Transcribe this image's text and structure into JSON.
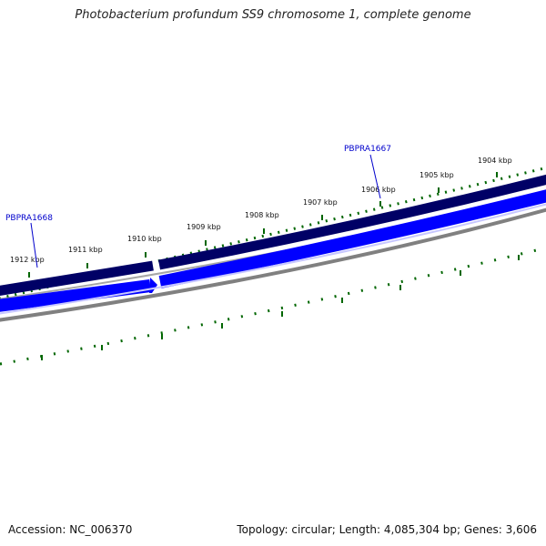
{
  "title": "Photobacterium profundum SS9 chromosome 1, complete genome",
  "footer": {
    "accession": "Accession: NC_006370",
    "topology": "Topology: circular; Length: 4,085,304 bp; Genes: 3,606"
  },
  "colors": {
    "forward_gene": "#000066",
    "reverse_gene": "#0000ff",
    "backbone": "#808080",
    "ticks": "#006600",
    "gene_label": "#0000cc"
  },
  "scale_labels": [
    "1912 kbp",
    "1911 kbp",
    "1910 kbp",
    "1909 kbp",
    "1908 kbp",
    "1907 kbp",
    "1906 kbp",
    "1905 kbp",
    "1904 kbp"
  ],
  "gene_labels": [
    "PBPRA1668",
    "PBPRA1667"
  ]
}
